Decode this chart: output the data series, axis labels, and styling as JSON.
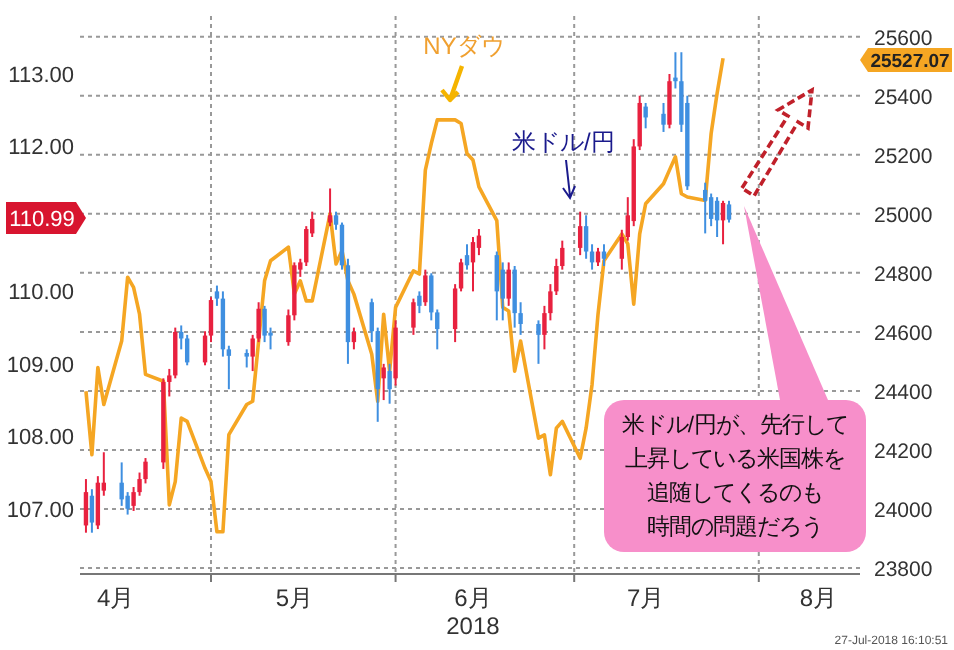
{
  "chart_data": {
    "type": "candlestick",
    "xlabel": "2018",
    "grid": true,
    "xlim": [
      "2018-04-09",
      "2018-08-18"
    ],
    "xticks": [
      {
        "value": "2018-04-15",
        "label": "4月"
      },
      {
        "value": "2018-05-01",
        "label": null
      },
      {
        "value": "2018-05-15",
        "label": "5月"
      },
      {
        "value": "2018-06-01",
        "label": null
      },
      {
        "value": "2018-06-14",
        "label": "6月"
      },
      {
        "value": "2018-07-01",
        "label": null
      },
      {
        "value": "2018-07-13",
        "label": "7月"
      },
      {
        "value": "2018-08-01",
        "label": null
      },
      {
        "value": "2018-08-11",
        "label": "8月"
      }
    ],
    "ylim": [
      106.1,
      113.8
    ],
    "yticks": [
      {
        "value": 107,
        "label": "107.00"
      },
      {
        "value": 108,
        "label": "108.00"
      },
      {
        "value": 109,
        "label": "109.00"
      },
      {
        "value": 110,
        "label": "110.00"
      },
      {
        "value": 112,
        "label": "112.00"
      },
      {
        "value": 113,
        "label": "113.00"
      }
    ],
    "y2lim": [
      23780,
      25670
    ],
    "y2ticks": [
      23800,
      24000,
      24200,
      24400,
      24600,
      24800,
      25000,
      25200,
      25400,
      25600
    ],
    "series": [
      {
        "name": "米ドル/円",
        "x": [
          "2018-04-10",
          "2018-04-11",
          "2018-04-12",
          "2018-04-13",
          "2018-04-16",
          "2018-04-17",
          "2018-04-18",
          "2018-04-19",
          "2018-04-20",
          "2018-04-23",
          "2018-04-24",
          "2018-04-25",
          "2018-04-26",
          "2018-04-27",
          "2018-04-30",
          "2018-05-01",
          "2018-05-02",
          "2018-05-03",
          "2018-05-04",
          "2018-05-07",
          "2018-05-08",
          "2018-05-09",
          "2018-05-10",
          "2018-05-11",
          "2018-05-14",
          "2018-05-15",
          "2018-05-16",
          "2018-05-17",
          "2018-05-18",
          "2018-05-21",
          "2018-05-22",
          "2018-05-23",
          "2018-05-24",
          "2018-05-25",
          "2018-05-28",
          "2018-05-29",
          "2018-05-30",
          "2018-05-31",
          "2018-06-01",
          "2018-06-04",
          "2018-06-05",
          "2018-06-06",
          "2018-06-07",
          "2018-06-08",
          "2018-06-11",
          "2018-06-12",
          "2018-06-13",
          "2018-06-14",
          "2018-06-15",
          "2018-06-18",
          "2018-06-19",
          "2018-06-20",
          "2018-06-21",
          "2018-06-22",
          "2018-06-25",
          "2018-06-26",
          "2018-06-27",
          "2018-06-28",
          "2018-06-29",
          "2018-07-02",
          "2018-07-03",
          "2018-07-04",
          "2018-07-05",
          "2018-07-06",
          "2018-07-09",
          "2018-07-10",
          "2018-07-11",
          "2018-07-12",
          "2018-07-13",
          "2018-07-16",
          "2018-07-17",
          "2018-07-18",
          "2018-07-19",
          "2018-07-20",
          "2018-07-23",
          "2018-07-24",
          "2018-07-25",
          "2018-07-26",
          "2018-07-27"
        ],
        "ohlc": [
          [
            106.77,
            107.41,
            106.67,
            107.23
          ],
          [
            107.18,
            107.27,
            106.67,
            106.81
          ],
          [
            106.77,
            107.45,
            106.72,
            107.36
          ],
          [
            107.25,
            107.78,
            107.18,
            107.36
          ],
          [
            107.36,
            107.64,
            107.04,
            107.13
          ],
          [
            107.18,
            107.23,
            106.92,
            107.0
          ],
          [
            107.04,
            107.3,
            106.97,
            107.23
          ],
          [
            107.23,
            107.5,
            107.18,
            107.41
          ],
          [
            107.41,
            107.7,
            107.35,
            107.65
          ],
          [
            107.64,
            108.8,
            107.55,
            108.75
          ],
          [
            108.75,
            108.93,
            108.55,
            108.84
          ],
          [
            108.84,
            109.5,
            108.8,
            109.44
          ],
          [
            109.44,
            109.53,
            109.2,
            109.35
          ],
          [
            109.35,
            109.4,
            108.98,
            109.02
          ],
          [
            109.02,
            109.45,
            108.98,
            109.39
          ],
          [
            109.39,
            109.92,
            109.3,
            109.88
          ],
          [
            110.0,
            110.08,
            109.8,
            109.9
          ],
          [
            109.9,
            110.0,
            109.1,
            109.2
          ],
          [
            109.2,
            109.25,
            108.65,
            109.11
          ],
          [
            109.15,
            109.2,
            108.95,
            109.1
          ],
          [
            109.1,
            109.4,
            108.9,
            109.35
          ],
          [
            109.35,
            109.85,
            109.3,
            109.76
          ],
          [
            109.76,
            109.8,
            109.3,
            109.39
          ],
          [
            109.43,
            109.5,
            109.2,
            109.39
          ],
          [
            109.3,
            109.75,
            109.25,
            109.67
          ],
          [
            109.67,
            110.4,
            109.6,
            110.36
          ],
          [
            110.3,
            110.45,
            110.2,
            110.4
          ],
          [
            110.4,
            110.9,
            110.35,
            110.86
          ],
          [
            110.8,
            111.1,
            110.75,
            111.0
          ],
          [
            110.95,
            111.42,
            110.9,
            111.05
          ],
          [
            111.05,
            111.1,
            110.85,
            110.92
          ],
          [
            110.92,
            110.95,
            110.3,
            110.36
          ],
          [
            110.36,
            110.45,
            109.0,
            109.3
          ],
          [
            109.3,
            109.5,
            109.2,
            109.44
          ],
          [
            109.85,
            109.9,
            109.3,
            109.45
          ],
          [
            109.45,
            109.5,
            108.2,
            108.65
          ],
          [
            108.8,
            109.0,
            108.5,
            108.95
          ],
          [
            108.9,
            109.0,
            108.45,
            108.65
          ],
          [
            108.8,
            109.6,
            108.7,
            109.5
          ],
          [
            109.5,
            109.9,
            109.4,
            109.85
          ],
          [
            109.94,
            110.0,
            109.7,
            109.8
          ],
          [
            109.85,
            110.3,
            109.8,
            110.22
          ],
          [
            110.22,
            110.25,
            109.6,
            109.71
          ],
          [
            109.71,
            109.75,
            109.2,
            109.48
          ],
          [
            109.48,
            110.1,
            109.3,
            110.04
          ],
          [
            110.04,
            110.45,
            110.0,
            110.4
          ],
          [
            110.5,
            110.65,
            110.3,
            110.36
          ],
          [
            110.4,
            110.75,
            110.0,
            110.68
          ],
          [
            110.6,
            110.86,
            110.5,
            110.77
          ],
          [
            110.5,
            110.55,
            109.6,
            110.0
          ],
          [
            110.3,
            110.4,
            109.6,
            109.9
          ],
          [
            109.9,
            110.4,
            109.8,
            110.3
          ],
          [
            110.3,
            110.35,
            109.5,
            109.7
          ],
          [
            109.7,
            109.85,
            109.4,
            109.55
          ],
          [
            109.55,
            109.6,
            109.0,
            109.4
          ],
          [
            109.4,
            109.8,
            109.2,
            109.7
          ],
          [
            109.7,
            110.1,
            109.6,
            110.0
          ],
          [
            110.0,
            110.45,
            109.95,
            110.35
          ],
          [
            110.35,
            110.7,
            110.3,
            110.6
          ],
          [
            110.6,
            111.1,
            110.5,
            110.9
          ],
          [
            110.9,
            111.05,
            110.45,
            110.55
          ],
          [
            110.55,
            110.65,
            110.3,
            110.4
          ],
          [
            110.4,
            110.6,
            110.35,
            110.55
          ],
          [
            110.55,
            110.65,
            110.35,
            110.45
          ],
          [
            110.45,
            110.85,
            110.3,
            110.75
          ],
          [
            110.75,
            111.3,
            110.7,
            111.05
          ],
          [
            110.97,
            112.1,
            110.9,
            112.0
          ],
          [
            112.0,
            112.7,
            111.95,
            112.6
          ],
          [
            112.55,
            112.6,
            112.25,
            112.4
          ],
          [
            112.45,
            112.6,
            112.2,
            112.3
          ],
          [
            112.3,
            113.0,
            112.25,
            112.9
          ],
          [
            112.95,
            113.3,
            112.8,
            112.9
          ],
          [
            112.9,
            113.3,
            112.2,
            112.3
          ],
          [
            112.6,
            112.7,
            111.4,
            111.45
          ],
          [
            111.4,
            111.5,
            110.8,
            111.25
          ],
          [
            111.3,
            111.35,
            110.9,
            111.0
          ],
          [
            111.25,
            111.3,
            110.75,
            110.98
          ],
          [
            110.98,
            111.25,
            110.65,
            111.22
          ],
          [
            111.2,
            111.25,
            110.95,
            110.99
          ]
        ],
        "colors": [
          "#e8213f",
          "#3f8fe0",
          "#e8213f",
          "#e8213f",
          "#3f8fe0",
          "#3f8fe0",
          "#e8213f",
          "#e8213f",
          "#e8213f",
          "#e8213f",
          "#e8213f",
          "#e8213f",
          "#3f8fe0",
          "#3f8fe0",
          "#e8213f",
          "#e8213f",
          "#3f8fe0",
          "#3f8fe0",
          "#3f8fe0",
          "#3f8fe0",
          "#e8213f",
          "#e8213f",
          "#3f8fe0",
          "#3f8fe0",
          "#e8213f",
          "#e8213f",
          "#e8213f",
          "#e8213f",
          "#e8213f",
          "#e8213f",
          "#3f8fe0",
          "#3f8fe0",
          "#3f8fe0",
          "#e8213f",
          "#3f8fe0",
          "#3f8fe0",
          "#e8213f",
          "#3f8fe0",
          "#e8213f",
          "#e8213f",
          "#3f8fe0",
          "#e8213f",
          "#3f8fe0",
          "#3f8fe0",
          "#e8213f",
          "#e8213f",
          "#3f8fe0",
          "#e8213f",
          "#e8213f",
          "#3f8fe0",
          "#3f8fe0",
          "#e8213f",
          "#3f8fe0",
          "#3f8fe0",
          "#3f8fe0",
          "#e8213f",
          "#e8213f",
          "#e8213f",
          "#e8213f",
          "#e8213f",
          "#3f8fe0",
          "#3f8fe0",
          "#e8213f",
          "#3f8fe0",
          "#e8213f",
          "#e8213f",
          "#e8213f",
          "#e8213f",
          "#3f8fe0",
          "#3f8fe0",
          "#e8213f",
          "#3f8fe0",
          "#3f8fe0",
          "#3f8fe0",
          "#3f8fe0",
          "#3f8fe0",
          "#3f8fe0",
          "#e8213f",
          "#3f8fe0"
        ]
      },
      {
        "type": "line",
        "name": "NYダウ",
        "axis": "y2",
        "color": "#f5a623",
        "x": [
          "2018-04-10",
          "2018-04-11",
          "2018-04-12",
          "2018-04-13",
          "2018-04-16",
          "2018-04-17",
          "2018-04-18",
          "2018-04-19",
          "2018-04-20",
          "2018-04-23",
          "2018-04-24",
          "2018-04-25",
          "2018-04-26",
          "2018-04-27",
          "2018-04-30",
          "2018-05-01",
          "2018-05-02",
          "2018-05-03",
          "2018-05-04",
          "2018-05-07",
          "2018-05-08",
          "2018-05-09",
          "2018-05-10",
          "2018-05-11",
          "2018-05-14",
          "2018-05-15",
          "2018-05-16",
          "2018-05-17",
          "2018-05-18",
          "2018-05-21",
          "2018-05-22",
          "2018-05-23",
          "2018-05-24",
          "2018-05-25",
          "2018-05-28",
          "2018-05-29",
          "2018-05-30",
          "2018-05-31",
          "2018-06-01",
          "2018-06-04",
          "2018-06-05",
          "2018-06-06",
          "2018-06-07",
          "2018-06-08",
          "2018-06-11",
          "2018-06-12",
          "2018-06-13",
          "2018-06-14",
          "2018-06-15",
          "2018-06-18",
          "2018-06-19",
          "2018-06-20",
          "2018-06-21",
          "2018-06-22",
          "2018-06-25",
          "2018-06-26",
          "2018-06-27",
          "2018-06-28",
          "2018-06-29",
          "2018-07-02",
          "2018-07-03",
          "2018-07-04",
          "2018-07-05",
          "2018-07-06",
          "2018-07-09",
          "2018-07-10",
          "2018-07-11",
          "2018-07-12",
          "2018-07-13",
          "2018-07-16",
          "2018-07-17",
          "2018-07-18",
          "2018-07-19",
          "2018-07-20",
          "2018-07-23",
          "2018-07-24",
          "2018-07-25",
          "2018-07-26"
        ],
        "values": [
          24399,
          24184,
          24479,
          24354,
          24569,
          24785,
          24751,
          24660,
          24456,
          24433,
          24014,
          24093,
          24308,
          24297,
          24138,
          24093,
          23923,
          23923,
          24252,
          24354,
          24365,
          24569,
          24773,
          24841,
          24887,
          24728,
          24773,
          24705,
          24705,
          25000,
          24830,
          24875,
          24773,
          24728,
          24524,
          24365,
          24660,
          24467,
          24683,
          24807,
          24796,
          25148,
          25238,
          25318,
          25318,
          25306,
          25204,
          25182,
          25091,
          24977,
          24683,
          24671,
          24467,
          24569,
          24240,
          24251,
          24116,
          24274,
          24297,
          24172,
          24274,
          24422,
          24660,
          24841,
          24932,
          24898,
          24694,
          24932,
          25034,
          25102,
          25148,
          25193,
          25068,
          25057,
          25045,
          25272,
          25408,
          25527.07
        ]
      }
    ],
    "annotations": [
      "110.99",
      "25527.07",
      "米ドル/円が、先行して",
      "上昇している米国株を",
      "追随してくるのも",
      "時間の問題だろう",
      "27-Jul-2018 16:10:51"
    ]
  }
}
